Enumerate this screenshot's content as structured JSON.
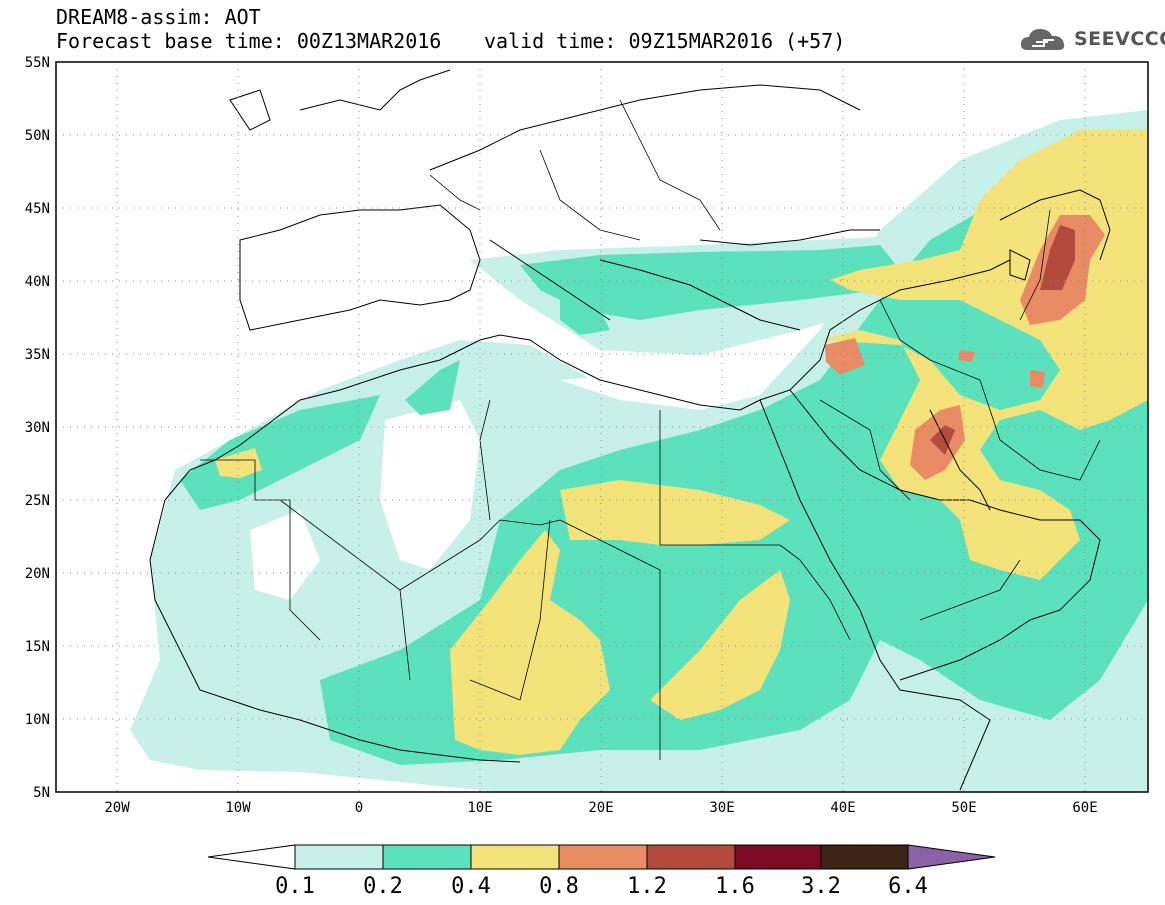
{
  "title": {
    "line1": "DREAM8-assim: AOT",
    "base_time": "Forecast base time: 00Z13MAR2016",
    "valid_time": "valid time: 09Z15MAR2016 (+57)"
  },
  "logo": {
    "text": "SEEVCCC",
    "icon": "cloud-icon"
  },
  "map": {
    "lon_range": [
      -25,
      65
    ],
    "lat_range": [
      5,
      55
    ],
    "lat_ticks": [
      "5N",
      "10N",
      "15N",
      "20N",
      "25N",
      "30N",
      "35N",
      "40N",
      "45N",
      "50N",
      "55N"
    ],
    "lon_ticks": [
      "20W",
      "10W",
      "0",
      "10E",
      "20E",
      "30E",
      "40E",
      "50E",
      "60E"
    ],
    "grid": "dotted"
  },
  "colorbar": {
    "levels": [
      "0.1",
      "0.2",
      "0.4",
      "0.8",
      "1.2",
      "1.6",
      "3.2",
      "6.4"
    ],
    "colors": [
      "#ffffff",
      "#c7f0e8",
      "#5be2bd",
      "#f4e27a",
      "#e98c65",
      "#b34b3c",
      "#7d0b25",
      "#3b2415",
      "#8a60a6"
    ]
  }
}
